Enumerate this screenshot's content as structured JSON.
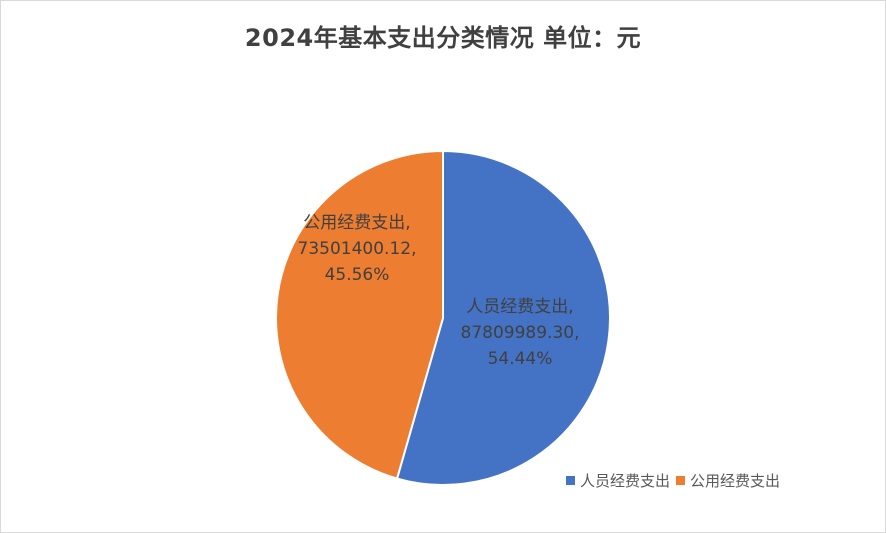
{
  "chart_data": {
    "type": "pie",
    "title": "2024年基本支出分类情况 单位：元",
    "series": [
      {
        "name": "人员经费支出",
        "value": 87809989.3,
        "value_label": "87809989.30",
        "percent_label": "54.44%",
        "color": "#4472c4"
      },
      {
        "name": "公用经费支出",
        "value": 73501400.12,
        "value_label": "73501400.12",
        "percent_label": "45.56%",
        "color": "#ed7d31"
      }
    ],
    "legend_position": "bottom-right",
    "start_angle": "12 o'clock",
    "direction": "clockwise"
  }
}
